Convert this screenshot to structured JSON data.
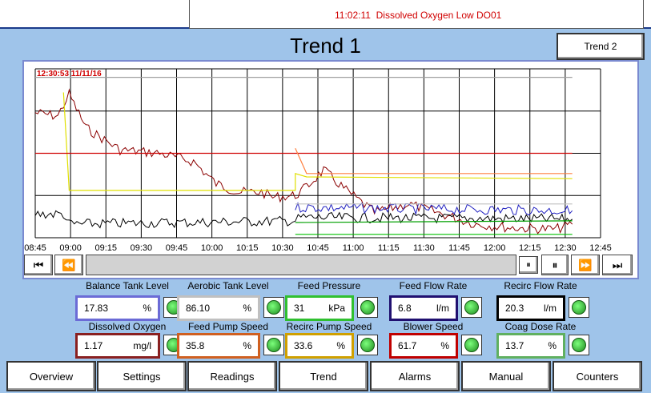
{
  "alarm": {
    "time": "11:02:11",
    "message": "Dissolved Oxygen Low DO01",
    "color": "#d00000"
  },
  "header": {
    "title": "Trend 1",
    "trend2_button": "Trend 2"
  },
  "trend": {
    "timestamp": "12:30:53  11/11/16",
    "scroll_glyph": "⏸",
    "playback_icons": [
      "skip-to-start-icon",
      "rewind-icon",
      "pause-marker-icon",
      "pause-icon",
      "fast-forward-icon",
      "skip-to-end-icon"
    ]
  },
  "chart_data": {
    "type": "line",
    "x_tick_labels": [
      "08:45",
      "09:00",
      "09:15",
      "09:30",
      "09:45",
      "10:00",
      "10:15",
      "10:30",
      "10:45",
      "11:00",
      "11:15",
      "11:30",
      "11:45",
      "12:00",
      "12:15",
      "12:30",
      "12:45"
    ],
    "grid": true,
    "series": [
      {
        "color": "#8b0000",
        "style": "noisy",
        "points": [
          [
            0,
            0.26
          ],
          [
            0.04,
            0.28
          ],
          [
            0.06,
            0.15
          ],
          [
            0.09,
            0.35
          ],
          [
            0.15,
            0.48
          ],
          [
            0.22,
            0.5
          ],
          [
            0.28,
            0.55
          ],
          [
            0.32,
            0.68
          ],
          [
            0.36,
            0.73
          ],
          [
            0.4,
            0.73
          ],
          [
            0.42,
            0.76
          ],
          [
            0.46,
            0.75
          ],
          [
            0.48,
            0.7
          ],
          [
            0.51,
            0.6
          ],
          [
            0.55,
            0.72
          ],
          [
            0.6,
            0.85
          ],
          [
            0.66,
            0.8
          ],
          [
            0.72,
            0.86
          ],
          [
            0.78,
            0.92
          ],
          [
            0.84,
            0.94
          ],
          [
            0.92,
            0.95
          ],
          [
            0.95,
            0.92
          ]
        ]
      },
      {
        "color": "#e0e000",
        "style": "step",
        "points": [
          [
            0.05,
            0.14
          ],
          [
            0.06,
            0.72
          ],
          [
            0.46,
            0.72
          ],
          [
            0.46,
            0.62
          ],
          [
            0.48,
            0.64
          ],
          [
            0.95,
            0.65
          ]
        ]
      },
      {
        "color": "#000000",
        "style": "noisy",
        "points": [
          [
            0,
            0.86
          ],
          [
            0.05,
            0.86
          ],
          [
            0.06,
            0.92
          ],
          [
            0.46,
            0.9
          ],
          [
            0.47,
            0.88
          ],
          [
            0.95,
            0.89
          ]
        ]
      },
      {
        "color": "#d00000",
        "style": "flat",
        "points": [
          [
            0,
            0.5
          ],
          [
            0.95,
            0.5
          ]
        ]
      },
      {
        "color": "#ff8040",
        "style": "flat",
        "points": [
          [
            0.46,
            0.47
          ],
          [
            0.48,
            0.62
          ],
          [
            0.95,
            0.62
          ]
        ]
      },
      {
        "color": "#2020c0",
        "style": "noisy",
        "points": [
          [
            0.46,
            0.82
          ],
          [
            0.95,
            0.84
          ]
        ]
      },
      {
        "color": "#00a000",
        "style": "flat",
        "points": [
          [
            0.46,
            0.91
          ],
          [
            0.95,
            0.9
          ]
        ]
      },
      {
        "color": "#00c000",
        "style": "flat",
        "points": [
          [
            0.46,
            0.98
          ],
          [
            0.95,
            0.98
          ]
        ]
      },
      {
        "color": "#a0a0a0",
        "style": "flat",
        "points": [
          [
            0,
            0.05
          ],
          [
            0.95,
            0.05
          ]
        ]
      },
      {
        "color": "#c0c0c0",
        "style": "flat",
        "points": [
          [
            0.46,
            0.8
          ],
          [
            0.95,
            0.8
          ]
        ]
      }
    ]
  },
  "panels": [
    {
      "label": "Balance Tank Level",
      "value": "17.83",
      "unit": "%",
      "border": "#6b6bd6"
    },
    {
      "label": "Aerobic Tank Level",
      "value": "86.10",
      "unit": "%",
      "border": "#c0c0c0"
    },
    {
      "label": "Feed Pressure",
      "value": "31",
      "unit": "kPa",
      "border": "#30c030"
    },
    {
      "label": "Feed Flow Rate",
      "value": "6.8",
      "unit": "l/m",
      "border": "#201070"
    },
    {
      "label": "Recirc Flow Rate",
      "value": "20.3",
      "unit": "l/m",
      "border": "#000000"
    },
    {
      "label": "Dissolved Oxygen",
      "value": "1.17",
      "unit": "mg/l",
      "border": "#8a2020"
    },
    {
      "label": "Feed Pump Speed",
      "value": "35.8",
      "unit": "%",
      "border": "#d06020"
    },
    {
      "label": "Recirc Pump Speed",
      "value": "33.6",
      "unit": "%",
      "border": "#d0a000"
    },
    {
      "label": "Blower Speed",
      "value": "61.7",
      "unit": "%",
      "border": "#c00000"
    },
    {
      "label": "Coag Dose Rate",
      "value": "13.7",
      "unit": "%",
      "border": "#60b060"
    }
  ],
  "tabs": [
    "Overview",
    "Settings",
    "Readings",
    "Trend",
    "Alarms",
    "Manual",
    "Counters"
  ]
}
